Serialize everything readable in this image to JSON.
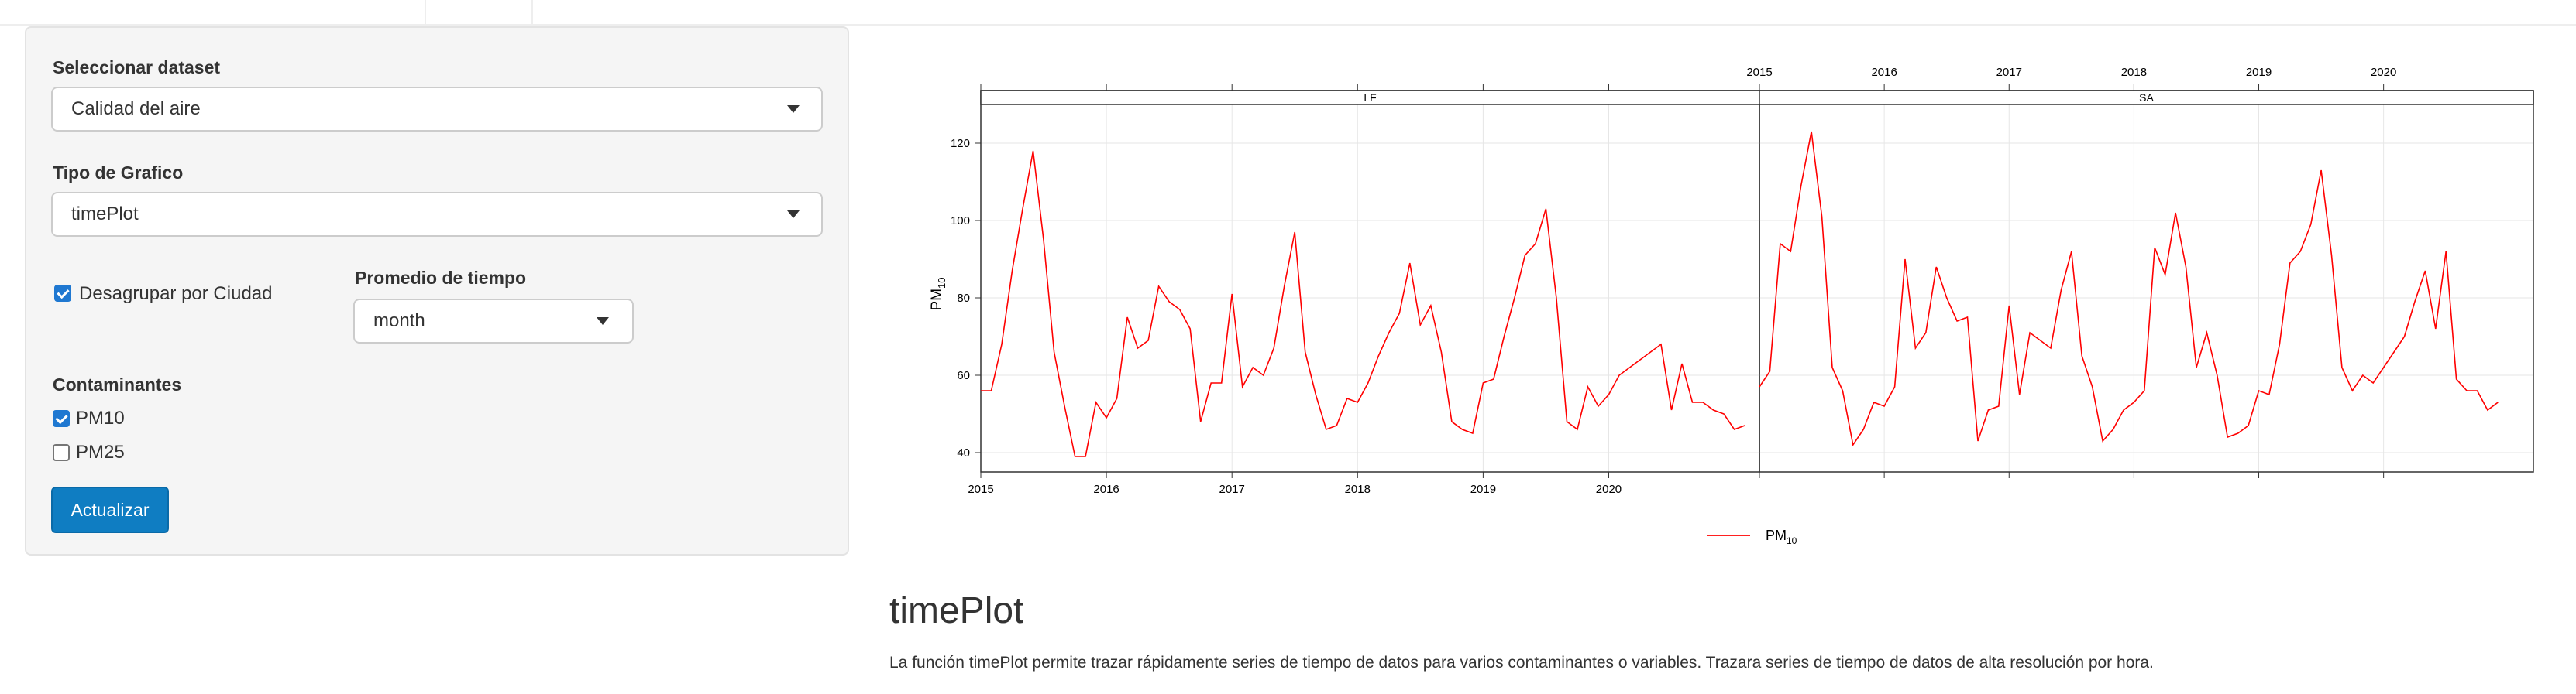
{
  "sidebar": {
    "dataset_label": "Seleccionar dataset",
    "dataset_value": "Calidad del aire",
    "plot_type_label": "Tipo de Grafico",
    "plot_type_value": "timePlot",
    "ungroup_label": "Desagrupar por Ciudad",
    "ungroup_checked": true,
    "avg_time_label": "Promedio de tiempo",
    "avg_time_value": "month",
    "pollutants_label": "Contaminantes",
    "pollutants": [
      {
        "label": "PM10",
        "checked": true
      },
      {
        "label": "PM25",
        "checked": false
      }
    ],
    "update_button": "Actualizar"
  },
  "output": {
    "title": "timePlot",
    "description": "La función timePlot permite trazar rápidamente series de tiempo de datos para varios contaminantes o variables. Trazara series de tiempo de datos de alta resolución por hora."
  },
  "chart_data": {
    "type": "line",
    "ylabel": "PM",
    "ylabel_sub": "10",
    "ylim": [
      35,
      130
    ],
    "yticks": [
      40,
      60,
      80,
      100,
      120
    ],
    "xticks": [
      "2015",
      "2016",
      "2017",
      "2018",
      "2019",
      "2020"
    ],
    "x_range": [
      2015,
      2021.2
    ],
    "legend": {
      "name": "PM",
      "sub": "10",
      "position": "bottom"
    },
    "line_color": "#ff0000",
    "grid": true,
    "panels": [
      {
        "name": "LF",
        "start": 2015.0,
        "values": [
          56,
          56,
          68,
          87,
          103,
          118,
          95,
          66,
          52,
          39,
          39,
          53,
          49,
          54,
          75,
          67,
          69,
          83,
          79,
          77,
          72,
          48,
          58,
          58,
          81,
          57,
          62,
          60,
          67,
          83,
          97,
          66,
          55,
          46,
          47,
          54,
          53,
          58,
          65,
          71,
          76,
          89,
          73,
          78,
          66,
          48,
          46,
          45,
          58,
          59,
          70,
          80,
          91,
          94,
          103,
          80,
          48,
          46,
          57,
          52,
          55,
          60,
          62,
          64,
          66,
          68,
          51,
          63,
          53,
          53,
          51,
          50,
          46,
          47
        ]
      },
      {
        "name": "SA",
        "start": 2015.0,
        "values": [
          57,
          61,
          94,
          92,
          109,
          123,
          101,
          62,
          56,
          42,
          46,
          53,
          52,
          57,
          90,
          67,
          71,
          88,
          80,
          74,
          75,
          43,
          51,
          52,
          78,
          55,
          71,
          69,
          67,
          82,
          92,
          65,
          57,
          43,
          46,
          51,
          53,
          56,
          93,
          86,
          102,
          88,
          62,
          71,
          60,
          44,
          45,
          47,
          56,
          55,
          68,
          89,
          92,
          99,
          113,
          91,
          62,
          56,
          60,
          58,
          62,
          66,
          70,
          79,
          87,
          72,
          92,
          59,
          56,
          56,
          51,
          53
        ]
      }
    ]
  }
}
